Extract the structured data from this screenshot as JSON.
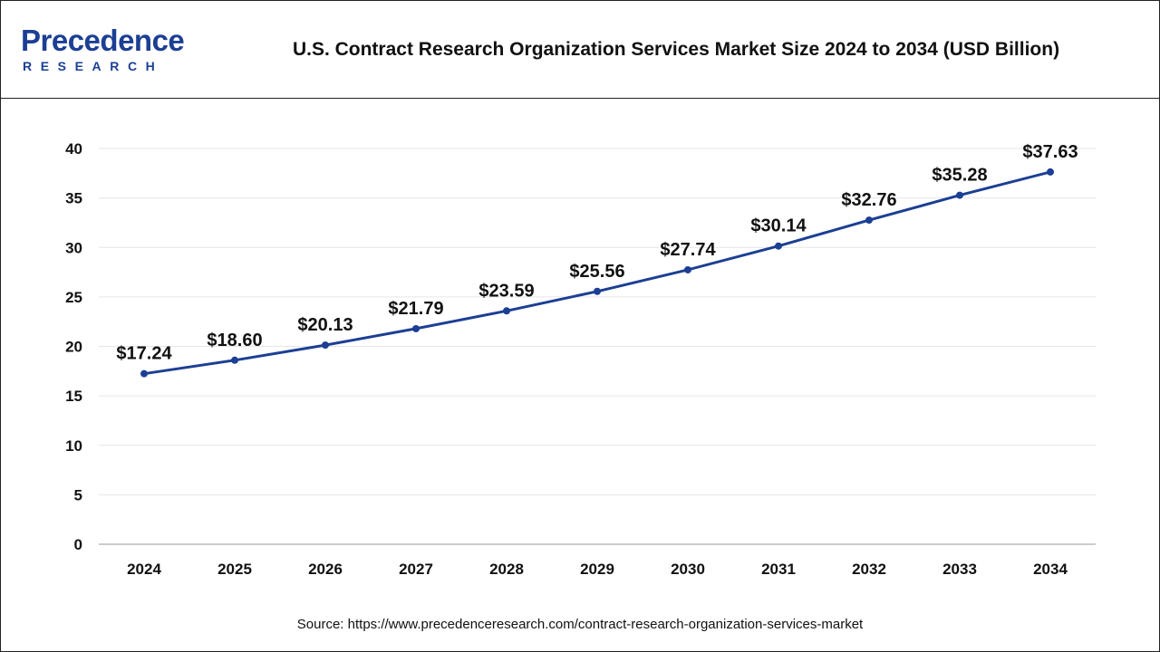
{
  "header": {
    "logo_main": "Precedence",
    "logo_sub": "RESEARCH",
    "title": "U.S. Contract Research Organization Services Market Size 2024 to 2034 (USD Billion)"
  },
  "footer": {
    "source": "Source: https://www.precedenceresearch.com/contract-research-organization-services-market"
  },
  "colors": {
    "line": "#1c3f94",
    "brand": "#1c3f94",
    "grid": "#e6e6e6",
    "axis": "#999999"
  },
  "chart_data": {
    "type": "line",
    "title": "U.S. Contract Research Organization Services Market Size 2024 to 2034 (USD Billion)",
    "xlabel": "",
    "ylabel": "",
    "categories": [
      "2024",
      "2025",
      "2026",
      "2027",
      "2028",
      "2029",
      "2030",
      "2031",
      "2032",
      "2033",
      "2034"
    ],
    "series": [
      {
        "values": [
          17.24,
          18.6,
          20.13,
          21.79,
          23.59,
          25.56,
          27.74,
          30.14,
          32.76,
          35.28,
          37.63
        ]
      }
    ],
    "data_labels": [
      "$17.24",
      "$18.60",
      "$20.13",
      "$21.79",
      "$23.59",
      "$25.56",
      "$27.74",
      "$30.14",
      "$32.76",
      "$35.28",
      "$37.63"
    ],
    "ylim": [
      0,
      40
    ],
    "yticks": [
      0,
      5,
      10,
      15,
      20,
      25,
      30,
      35,
      40
    ],
    "grid": true,
    "legend": "none"
  }
}
